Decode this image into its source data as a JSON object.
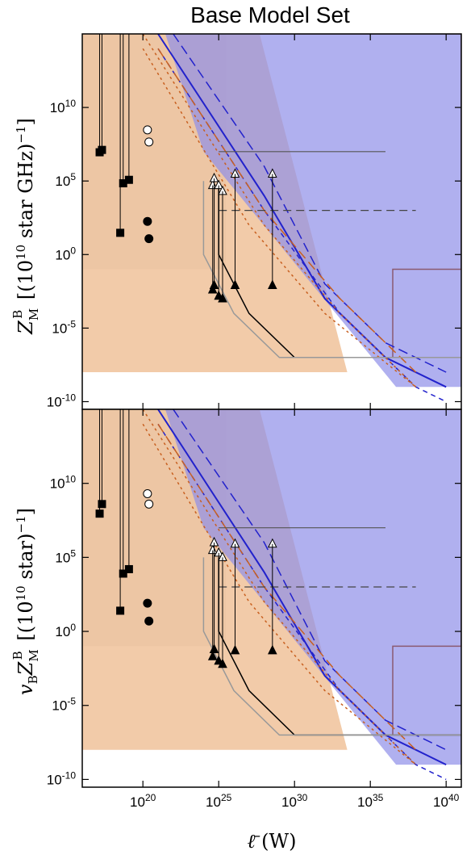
{
  "chart_data": [
    {
      "type": "line",
      "title": "Base Model Set",
      "panel": "top",
      "xlabel": "ℓ̄ (W)",
      "ylabel": "Z_M^B [(10^10 star GHz)^-1]",
      "x_scale": "log",
      "y_scale": "log",
      "xlim": [
        1e+16,
        1e+41
      ],
      "ylim": [
        3e-11,
        1000000000000000.0
      ],
      "x_ticks": [
        {
          "base": "10",
          "exp": "20"
        },
        {
          "base": "10",
          "exp": "25"
        },
        {
          "base": "10",
          "exp": "30"
        },
        {
          "base": "10",
          "exp": "35"
        },
        {
          "base": "10",
          "exp": "40"
        }
      ],
      "y_ticks": [
        {
          "base": "10",
          "exp": "-10"
        },
        {
          "base": "10",
          "exp": "-5"
        },
        {
          "base": "10",
          "exp": "0"
        },
        {
          "base": "10",
          "exp": "5"
        },
        {
          "base": "10",
          "exp": "10"
        }
      ],
      "grid": false,
      "regions": [
        {
          "name": "gray",
          "color": "#d9d9d9"
        },
        {
          "name": "blue",
          "color": "#8f8fe8"
        },
        {
          "name": "orange",
          "color": "#f0c29a"
        }
      ],
      "limits": [
        {
          "marker": "square",
          "x": 1.4e+17,
          "y": 9000000.0
        },
        {
          "marker": "square",
          "x": 2e+17,
          "y": 13000000.0
        },
        {
          "marker": "square",
          "x": 3.2e+18,
          "y": 30
        },
        {
          "marker": "square",
          "x": 5e+18,
          "y": 70000.0
        },
        {
          "marker": "square",
          "x": 1.2e+19,
          "y": 120000.0
        },
        {
          "marker": "circle-open",
          "x": 2e+20,
          "y": 300000000.0
        },
        {
          "marker": "circle-open",
          "x": 2.5e+20,
          "y": 45000000.0
        },
        {
          "marker": "circle",
          "x": 2e+20,
          "y": 180
        },
        {
          "marker": "circle",
          "x": 2.5e+20,
          "y": 12
        },
        {
          "marker": "triangle-up-open",
          "x": 4e+24,
          "y": 50000.0
        },
        {
          "marker": "triangle-up-open",
          "x": 5e+24,
          "y": 150000.0
        },
        {
          "marker": "triangle-up-open",
          "x": 1e+25,
          "y": 50000.0
        },
        {
          "marker": "triangle-up-open",
          "x": 1.8e+25,
          "y": 20000.0
        },
        {
          "marker": "triangle-up-open",
          "x": 1.2e+26,
          "y": 300000.0
        },
        {
          "marker": "triangle-up-open",
          "x": 3.5e+28,
          "y": 300000.0
        },
        {
          "marker": "triangle-up",
          "x": 4e+24,
          "y": 0.004
        },
        {
          "marker": "triangle-up",
          "x": 5e+24,
          "y": 0.008
        },
        {
          "marker": "triangle-up",
          "x": 1e+25,
          "y": 0.0015
        },
        {
          "marker": "triangle-up",
          "x": 1.8e+25,
          "y": 0.001
        },
        {
          "marker": "triangle-up",
          "x": 1.2e+26,
          "y": 0.008
        },
        {
          "marker": "triangle-up",
          "x": 3.5e+28,
          "y": 0.008
        }
      ]
    },
    {
      "type": "line",
      "panel": "bottom",
      "xlabel": "ℓ̄ (W)",
      "ylabel": "v_B Z_M^B [(10^10 star)^-1]",
      "x_scale": "log",
      "y_scale": "log",
      "xlim": [
        1e+16,
        1e+41
      ],
      "ylim": [
        3e-11,
        1000000000000000.0
      ],
      "x_ticks": [
        {
          "base": "10",
          "exp": "20"
        },
        {
          "base": "10",
          "exp": "25"
        },
        {
          "base": "10",
          "exp": "30"
        },
        {
          "base": "10",
          "exp": "35"
        },
        {
          "base": "10",
          "exp": "40"
        }
      ],
      "y_ticks": [
        {
          "base": "10",
          "exp": "-10"
        },
        {
          "base": "10",
          "exp": "-5"
        },
        {
          "base": "10",
          "exp": "0"
        },
        {
          "base": "10",
          "exp": "5"
        },
        {
          "base": "10",
          "exp": "10"
        }
      ],
      "grid": false,
      "regions": [
        {
          "name": "gray",
          "color": "#d9d9d9"
        },
        {
          "name": "blue",
          "color": "#8f8fe8"
        },
        {
          "name": "orange",
          "color": "#f0c29a"
        }
      ],
      "limits": [
        {
          "marker": "square",
          "x": 1.4e+17,
          "y": 90000000.0
        },
        {
          "marker": "square",
          "x": 2e+17,
          "y": 400000000.0
        },
        {
          "marker": "square",
          "x": 3.2e+18,
          "y": 25
        },
        {
          "marker": "square",
          "x": 5e+18,
          "y": 8000.0
        },
        {
          "marker": "square",
          "x": 1.2e+19,
          "y": 16000.0
        },
        {
          "marker": "circle-open",
          "x": 2e+20,
          "y": 2000000000.0
        },
        {
          "marker": "circle-open",
          "x": 2.5e+20,
          "y": 400000000.0
        },
        {
          "marker": "circle",
          "x": 2e+20,
          "y": 80
        },
        {
          "marker": "circle",
          "x": 2.5e+20,
          "y": 5
        },
        {
          "marker": "triangle-up-open",
          "x": 4e+24,
          "y": 300000.0
        },
        {
          "marker": "triangle-up-open",
          "x": 5e+24,
          "y": 1000000.0
        },
        {
          "marker": "triangle-up-open",
          "x": 1e+25,
          "y": 200000.0
        },
        {
          "marker": "triangle-up-open",
          "x": 1.8e+25,
          "y": 100000.0
        },
        {
          "marker": "triangle-up-open",
          "x": 1.2e+26,
          "y": 800000.0
        },
        {
          "marker": "triangle-up-open",
          "x": 3.5e+28,
          "y": 800000.0
        },
        {
          "marker": "triangle-up",
          "x": 4e+24,
          "y": 0.02
        },
        {
          "marker": "triangle-up",
          "x": 5e+24,
          "y": 0.06
        },
        {
          "marker": "triangle-up",
          "x": 1e+25,
          "y": 0.01
        },
        {
          "marker": "triangle-up",
          "x": 1.8e+25,
          "y": 0.006
        },
        {
          "marker": "triangle-up",
          "x": 1.2e+26,
          "y": 0.05
        },
        {
          "marker": "triangle-up",
          "x": 3.5e+28,
          "y": 0.05
        }
      ]
    }
  ]
}
